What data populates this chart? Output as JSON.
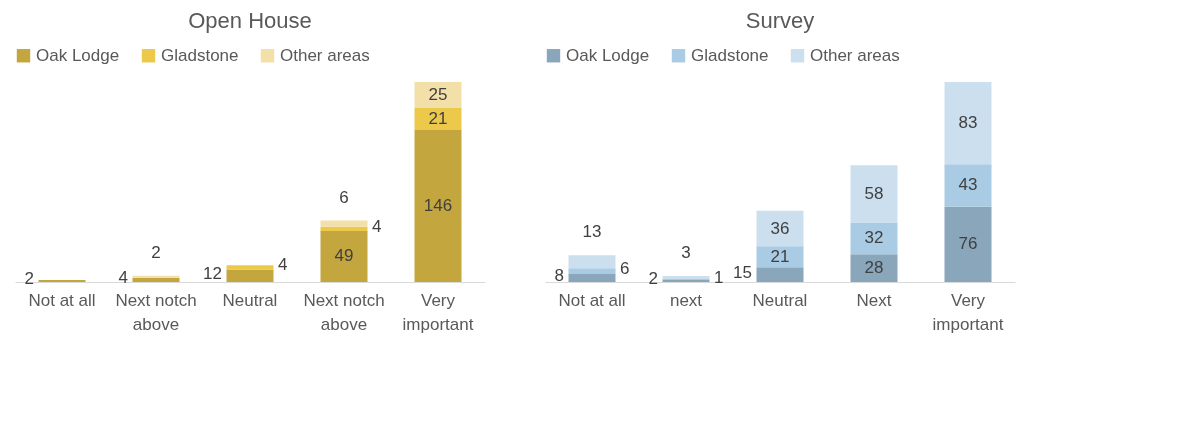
{
  "chart_data": [
    {
      "type": "bar",
      "title": "Open House",
      "stacked": true,
      "data_labels": true,
      "legend": "top",
      "categories": [
        "Not at all",
        "Next notch above",
        "Neutral",
        "Next notch above",
        "Very important"
      ],
      "series": [
        {
          "name": "Oak Lodge",
          "color": "#c4a63e",
          "values": [
            2,
            4,
            12,
            49,
            146
          ]
        },
        {
          "name": "Gladstone",
          "color": "#ecc94b",
          "values": [
            null,
            null,
            4,
            4,
            21
          ]
        },
        {
          "name": "Other areas",
          "color": "#f3dfa8",
          "values": [
            null,
            2,
            null,
            6,
            25
          ]
        }
      ]
    },
    {
      "type": "bar",
      "title": "Survey",
      "stacked": true,
      "data_labels": true,
      "legend": "top",
      "categories": [
        "Not at all",
        "next",
        "Neutral",
        "Next",
        "Very important"
      ],
      "series": [
        {
          "name": "Oak Lodge",
          "color": "#8aa6bb",
          "values": [
            8,
            2,
            15,
            28,
            76
          ]
        },
        {
          "name": "Gladstone",
          "color": "#a9cbe3",
          "values": [
            6,
            1,
            21,
            32,
            43
          ]
        },
        {
          "name": "Other areas",
          "color": "#cbdfee",
          "values": [
            13,
            3,
            36,
            58,
            83
          ]
        }
      ]
    }
  ]
}
